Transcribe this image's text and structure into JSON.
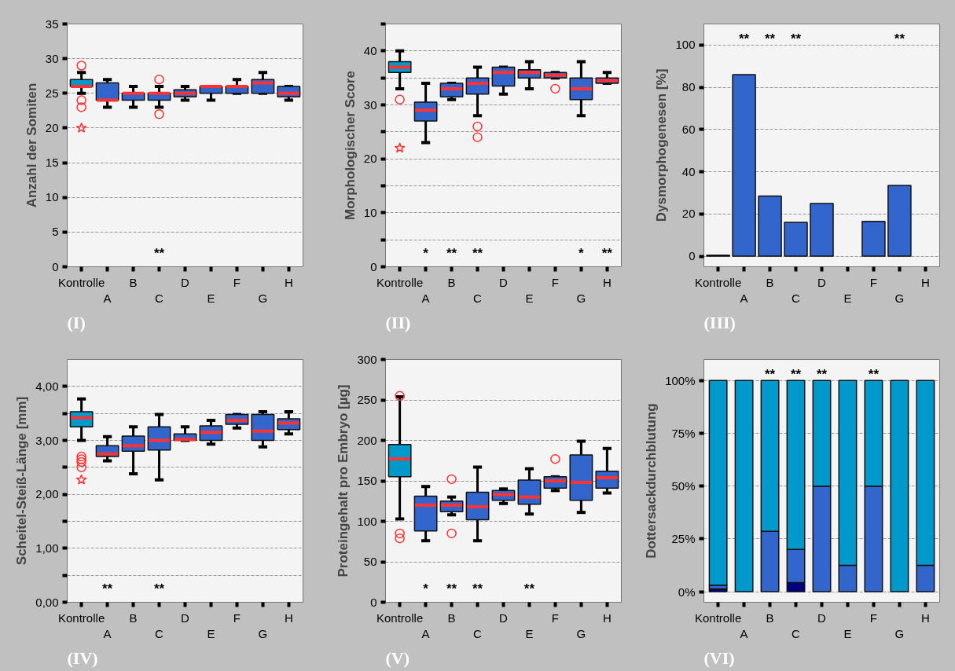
{
  "chart_data": [
    {
      "type": "box",
      "title": "(I)",
      "ylabel": "Anzahl der Somiten",
      "categories": [
        "Kontrolle",
        "A",
        "B",
        "C",
        "D",
        "E",
        "F",
        "G",
        "H"
      ],
      "colors": [
        "#0099cc",
        "#3366cc",
        "#3366cc",
        "#3366cc",
        "#3366cc",
        "#3366cc",
        "#3366cc",
        "#3366cc",
        "#3366cc"
      ],
      "boxes": [
        {
          "low": 25,
          "q1": 26,
          "median": 26,
          "q3": 27,
          "high": 28,
          "outliers": [
            29,
            24,
            23
          ]
        },
        {
          "low": 23,
          "q1": 24,
          "median": 24,
          "q3": 26.5,
          "high": 27
        },
        {
          "low": 23,
          "q1": 24,
          "median": 25,
          "q3": 25,
          "high": 26
        },
        {
          "low": 23,
          "q1": 24,
          "median": 25,
          "q3": 25,
          "high": 26,
          "outliers": [
            27,
            22
          ]
        },
        {
          "low": 24,
          "q1": 24.5,
          "median": 25,
          "q3": 25.5,
          "high": 26
        },
        {
          "low": 24,
          "q1": 25,
          "median": 26,
          "q3": 26,
          "high": 26
        },
        {
          "low": 25,
          "q1": 25,
          "median": 26,
          "q3": 26,
          "high": 27
        },
        {
          "low": 25,
          "q1": 25,
          "median": 26.5,
          "q3": 27,
          "high": 28
        },
        {
          "low": 24,
          "q1": 24.5,
          "median": 25,
          "q3": 26,
          "high": 26
        }
      ],
      "series": [
        {
          "type": "scatter",
          "marker": "star",
          "color": "#ff3333",
          "x": [
            "Kontrolle"
          ],
          "values": [
            20
          ]
        }
      ],
      "ylim": [
        0,
        35
      ],
      "yticks": [
        0,
        5,
        10,
        15,
        20,
        25,
        30,
        35
      ],
      "grid": "y",
      "annotations": [
        "**"
      ]
    },
    {
      "type": "box",
      "title": "(II)",
      "ylabel": "Morphologischer Score",
      "categories": [
        "Kontrolle",
        "A",
        "B",
        "C",
        "D",
        "E",
        "F",
        "G",
        "H"
      ],
      "colors": [
        "#0099cc",
        "#3366cc",
        "#3366cc",
        "#3366cc",
        "#3366cc",
        "#3366cc",
        "#3366cc",
        "#3366cc",
        "#3366cc"
      ],
      "boxes": [
        {
          "low": 33,
          "q1": 36,
          "median": 37,
          "q3": 38,
          "high": 40,
          "outliers": [
            31
          ]
        },
        {
          "low": 23,
          "q1": 27,
          "median": 29,
          "q3": 30.5,
          "high": 34
        },
        {
          "low": 31,
          "q1": 31.5,
          "median": 33,
          "q3": 34,
          "high": 34
        },
        {
          "low": 28,
          "q1": 32,
          "median": 34,
          "q3": 35,
          "high": 37,
          "outliers": [
            26,
            24
          ]
        },
        {
          "low": 32,
          "q1": 33.5,
          "median": 36,
          "q3": 37,
          "high": 37
        },
        {
          "low": 33,
          "q1": 35,
          "median": 36,
          "q3": 36.5,
          "high": 38
        },
        {
          "low": 35,
          "q1": 35,
          "median": 35.5,
          "q3": 36,
          "high": 36,
          "outliers": [
            33
          ]
        },
        {
          "low": 28,
          "q1": 31,
          "median": 33,
          "q3": 35,
          "high": 38
        },
        {
          "low": 34,
          "q1": 34,
          "median": 34.5,
          "q3": 35,
          "high": 36
        }
      ],
      "series": [
        {
          "type": "scatter",
          "marker": "star",
          "color": "#ff3333",
          "x": [
            "Kontrolle"
          ],
          "values": [
            22
          ]
        }
      ],
      "ylim": [
        0,
        45
      ],
      "yticks": [
        0,
        {
          "value": 5,
          "label": null
        },
        10,
        {
          "value": 15,
          "label": null
        },
        20,
        {
          "value": 25,
          "label": null
        },
        30,
        {
          "value": 35,
          "label": null
        },
        40,
        {
          "value": 45,
          "label": null
        }
      ],
      "grid": "y",
      "annotations": [
        "*",
        "**",
        "**",
        "*",
        "**"
      ]
    },
    {
      "type": "bar",
      "title": "(III)",
      "ylabel": "Dysmorphogenesen [%]",
      "categories": [
        "Kontrolle",
        "A",
        "B",
        "C",
        "D",
        "E",
        "F",
        "G",
        "H"
      ],
      "series": [
        {
          "color": "#3366cc",
          "values": [
            0.5,
            86,
            28.5,
            16,
            25,
            null,
            16.5,
            33.5,
            null
          ]
        }
      ],
      "ylim": [
        -5,
        110
      ],
      "yticks": [
        0,
        20,
        40,
        60,
        80,
        100
      ],
      "grid": "y",
      "annotations": [
        "**",
        "**",
        "**",
        "**"
      ]
    },
    {
      "type": "box",
      "title": "(IV)",
      "ylabel": "Scheitel-Steiß-Länge [mm]",
      "categories": [
        "Kontrolle",
        "A",
        "B",
        "C",
        "D",
        "E",
        "F",
        "G",
        "H"
      ],
      "colors": [
        "#0099cc",
        "#3366cc",
        "#3366cc",
        "#3366cc",
        "#3366cc",
        "#3366cc",
        "#3366cc",
        "#3366cc",
        "#3366cc"
      ],
      "boxes": [
        {
          "low": 3.0,
          "q1": 3.25,
          "median": 3.42,
          "q3": 3.53,
          "high": 3.77,
          "outliers": [
            2.7,
            2.65,
            2.6,
            2.5
          ]
        },
        {
          "low": 2.62,
          "q1": 2.7,
          "median": 2.75,
          "q3": 2.9,
          "high": 3.07
        },
        {
          "low": 2.38,
          "q1": 2.8,
          "median": 2.9,
          "q3": 3.08,
          "high": 3.25
        },
        {
          "low": 2.27,
          "q1": 2.82,
          "median": 3.0,
          "q3": 3.25,
          "high": 3.48
        },
        {
          "low": 3.0,
          "q1": 3.0,
          "median": 3.02,
          "q3": 3.12,
          "high": 3.25
        },
        {
          "low": 2.93,
          "q1": 3.0,
          "median": 3.15,
          "q3": 3.27,
          "high": 3.37
        },
        {
          "low": 3.23,
          "q1": 3.3,
          "median": 3.37,
          "q3": 3.48,
          "high": 3.48
        },
        {
          "low": 2.88,
          "q1": 3.0,
          "median": 3.17,
          "q3": 3.48,
          "high": 3.53
        },
        {
          "low": 3.12,
          "q1": 3.2,
          "median": 3.32,
          "q3": 3.4,
          "high": 3.53
        }
      ],
      "series": [
        {
          "type": "scatter",
          "marker": "star",
          "color": "#ff3333",
          "x": [
            "Kontrolle"
          ],
          "values": [
            2.27
          ]
        }
      ],
      "ylim": [
        0,
        4.5
      ],
      "yticks": [
        {
          "value": 0,
          "label": "0,00"
        },
        {
          "value": 0.5,
          "label": null
        },
        {
          "value": 1,
          "label": "1,00"
        },
        {
          "value": 1.5,
          "label": null
        },
        {
          "value": 2,
          "label": "2,00"
        },
        {
          "value": 2.5,
          "label": null
        },
        {
          "value": 3,
          "label": "3,00"
        },
        {
          "value": 3.5,
          "label": null
        },
        {
          "value": 4,
          "label": "4,00"
        }
      ],
      "grid": "y",
      "annotations": [
        "**",
        "**"
      ]
    },
    {
      "type": "box",
      "title": "(V)",
      "ylabel": "Proteingehalt pro Embryo [µg]",
      "categories": [
        "Kontrolle",
        "A",
        "B",
        "C",
        "D",
        "E",
        "F",
        "G",
        "H"
      ],
      "colors": [
        "#0099cc",
        "#3366cc",
        "#3366cc",
        "#3366cc",
        "#3366cc",
        "#3366cc",
        "#3366cc",
        "#3366cc",
        "#3366cc"
      ],
      "boxes": [
        {
          "low": 103,
          "q1": 155,
          "median": 177,
          "q3": 195,
          "high": 254,
          "outliers": [
            255,
            85,
            79
          ]
        },
        {
          "low": 76,
          "q1": 88,
          "median": 120,
          "q3": 131,
          "high": 143
        },
        {
          "low": 108,
          "q1": 112,
          "median": 120,
          "q3": 125,
          "high": 130,
          "outliers": [
            152,
            85
          ]
        },
        {
          "low": 76,
          "q1": 102,
          "median": 118,
          "q3": 136,
          "high": 167
        },
        {
          "low": 122,
          "q1": 126,
          "median": 133,
          "q3": 138,
          "high": 140
        },
        {
          "low": 109,
          "q1": 121,
          "median": 130,
          "q3": 151,
          "high": 165
        },
        {
          "low": 138,
          "q1": 141,
          "median": 150,
          "q3": 155,
          "high": 155,
          "outliers": [
            177
          ]
        },
        {
          "low": 111,
          "q1": 126,
          "median": 148,
          "q3": 182,
          "high": 199
        },
        {
          "low": 135,
          "q1": 141,
          "median": 154,
          "q3": 162,
          "high": 190
        }
      ],
      "ylim": [
        0,
        300
      ],
      "yticks": [
        0,
        50,
        100,
        150,
        200,
        250,
        300
      ],
      "grid": "y",
      "annotations": [
        "*",
        "**",
        "**",
        "**"
      ]
    },
    {
      "type": "bar",
      "title": "(VI)",
      "ylabel": "Dottersackdurchblutung",
      "stacked": true,
      "categories": [
        "Kontrolle",
        "A",
        "B",
        "C",
        "D",
        "E",
        "F",
        "G",
        "H"
      ],
      "series": [
        {
          "color": "#000080",
          "values": [
            1.3,
            null,
            null,
            4.3,
            null,
            null,
            null,
            null,
            null
          ]
        },
        {
          "color": "#3366cc",
          "values": [
            1.8,
            null,
            28.6,
            15.7,
            50,
            12.5,
            50,
            null,
            12.5
          ]
        },
        {
          "color": "#0099cc",
          "values": [
            96.9,
            100,
            71.4,
            80,
            50,
            87.5,
            50,
            100,
            87.5
          ]
        }
      ],
      "ylim": [
        -5,
        110
      ],
      "yticks": [
        {
          "value": 0,
          "label": "0%"
        },
        {
          "value": 25,
          "label": "25%"
        },
        {
          "value": 50,
          "label": "50%"
        },
        {
          "value": 75,
          "label": "75%"
        },
        {
          "value": 100,
          "label": "100%"
        }
      ],
      "grid": "y",
      "annotations": [
        "**",
        "**",
        "**",
        "**"
      ]
    }
  ]
}
